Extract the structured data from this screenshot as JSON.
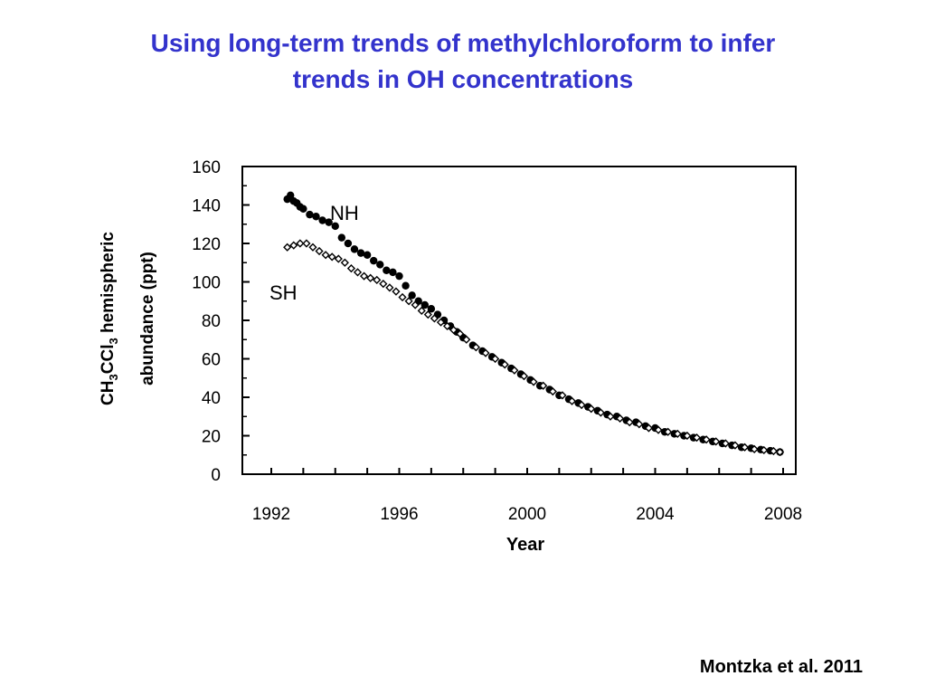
{
  "slide": {
    "title_line1": "Using long-term trends of methylchloroform to infer",
    "title_line2": "trends in OH concentrations",
    "citation": "Montzka et al. 2011"
  },
  "colors": {
    "title": "#3333cc",
    "nh_marker": "#000000",
    "sh_marker": "#000000"
  },
  "chart_data": {
    "type": "scatter",
    "xlabel": "Year",
    "ylabel_parts": [
      "CH",
      "3",
      "CCl",
      "3",
      " hemispheric"
    ],
    "ylabel_line2": "abundance (ppt)",
    "xlim": [
      1992,
      2008
    ],
    "ylim": [
      0,
      160
    ],
    "x_ticks": [
      "1992",
      "1996",
      "2000",
      "2004",
      "2008"
    ],
    "y_ticks": [
      "0",
      "20",
      "40",
      "60",
      "80",
      "100",
      "120",
      "140",
      "160"
    ],
    "grid": false,
    "series": [
      {
        "name": "NH",
        "marker": "filled-circle",
        "x": [
          1992.5,
          1992.6,
          1992.7,
          1992.8,
          1992.9,
          1993.0,
          1993.2,
          1993.4,
          1993.6,
          1993.8,
          1994.0,
          1994.2,
          1994.4,
          1994.6,
          1994.8,
          1995.0,
          1995.2,
          1995.4,
          1995.6,
          1995.8,
          1996.0,
          1996.2,
          1996.4,
          1996.6,
          1996.8,
          1997.0,
          1997.2,
          1997.4,
          1997.6,
          1997.8,
          1998.0,
          1998.3,
          1998.6,
          1998.9,
          1999.2,
          1999.5,
          1999.8,
          2000.1,
          2000.4,
          2000.7,
          2001.0,
          2001.3,
          2001.6,
          2001.9,
          2002.2,
          2002.5,
          2002.8,
          2003.1,
          2003.4,
          2003.7,
          2004.0,
          2004.3,
          2004.6,
          2004.9,
          2005.2,
          2005.5,
          2005.8,
          2006.1,
          2006.4,
          2006.7,
          2007.0,
          2007.3,
          2007.6,
          2007.9
        ],
        "y": [
          143,
          145,
          142,
          141,
          139,
          138,
          135,
          134,
          132,
          131,
          129,
          123,
          120,
          117,
          115,
          114,
          111,
          109,
          106,
          105,
          103,
          98,
          93,
          90,
          88,
          86,
          83,
          80,
          77,
          74,
          71,
          67,
          64,
          61,
          58,
          55,
          52,
          49,
          46,
          44,
          41,
          39,
          37,
          35,
          33,
          31,
          30,
          28,
          27,
          25,
          24,
          22,
          21,
          20,
          19,
          18,
          17,
          16,
          15,
          14,
          13.5,
          12.8,
          12.2,
          11.5
        ]
      },
      {
        "name": "SH",
        "marker": "open-diamond",
        "x": [
          1992.5,
          1992.7,
          1992.9,
          1993.1,
          1993.3,
          1993.5,
          1993.7,
          1993.9,
          1994.1,
          1994.3,
          1994.5,
          1994.7,
          1994.9,
          1995.1,
          1995.3,
          1995.5,
          1995.7,
          1995.9,
          1996.1,
          1996.3,
          1996.5,
          1996.7,
          1996.9,
          1997.1,
          1997.3,
          1997.5,
          1997.7,
          1997.9,
          1998.1,
          1998.4,
          1998.7,
          1999.0,
          1999.3,
          1999.6,
          1999.9,
          2000.2,
          2000.5,
          2000.8,
          2001.1,
          2001.4,
          2001.7,
          2002.0,
          2002.3,
          2002.6,
          2002.9,
          2003.2,
          2003.5,
          2003.8,
          2004.1,
          2004.4,
          2004.7,
          2005.0,
          2005.3,
          2005.6,
          2005.9,
          2006.2,
          2006.5,
          2006.8,
          2007.1,
          2007.4,
          2007.7,
          2007.9
        ],
        "y": [
          118,
          119,
          120,
          120,
          118,
          116,
          114,
          113,
          112,
          110,
          107,
          105,
          103,
          102,
          101,
          99,
          97,
          95,
          92,
          90,
          88,
          85,
          83,
          81,
          79,
          77,
          75,
          73,
          70,
          66,
          63,
          60,
          57,
          54,
          51,
          48,
          46,
          43,
          41,
          38,
          36,
          34,
          32,
          30,
          29,
          27,
          26,
          24,
          23,
          22,
          21,
          20,
          19,
          18,
          17,
          16,
          15,
          14,
          13,
          12.5,
          12,
          11.5
        ]
      }
    ]
  }
}
